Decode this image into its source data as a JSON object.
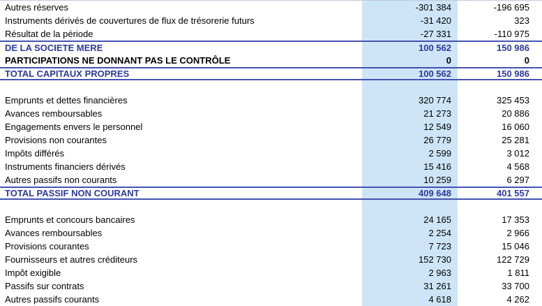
{
  "colors": {
    "highlight_column": "#cde5f6",
    "total_text": "#2b3a9d",
    "separator_line": "#4453b2"
  },
  "table": {
    "rows": [
      {
        "label": "Autres réserves",
        "v1": "-301 384",
        "v2": "-196 695",
        "style": "normal"
      },
      {
        "label": "Instruments dérivés de couvertures de flux de trésorerie futurs",
        "v1": "-31 420",
        "v2": "323",
        "style": "normal"
      },
      {
        "label": "Résultat de la période",
        "v1": "-27 331",
        "v2": "-110 975",
        "style": "normal"
      },
      {
        "label": "DE LA SOCIETE MERE",
        "v1": "100 562",
        "v2": "150 986",
        "style": "total-blue",
        "border_top": true
      },
      {
        "label": "PARTICIPATIONS NE DONNANT PAS LE CONTRÔLE",
        "v1": "0",
        "v2": "0",
        "style": "bold-black"
      },
      {
        "label": "TOTAL CAPITAUX PROPRES",
        "v1": "100 562",
        "v2": "150 986",
        "style": "total-blue",
        "border_top": true,
        "border_bottom": true
      },
      {
        "style": "spacer"
      },
      {
        "label": "Emprunts et dettes financières",
        "v1": "320 774",
        "v2": "325 453",
        "style": "normal"
      },
      {
        "label": "Avances remboursables",
        "v1": "21 273",
        "v2": "20 886",
        "style": "normal"
      },
      {
        "label": "Engagements envers le personnel",
        "v1": "12 549",
        "v2": "16 060",
        "style": "normal"
      },
      {
        "label": "Provisions non courantes",
        "v1": "26 779",
        "v2": "25 281",
        "style": "normal"
      },
      {
        "label": "Impôts différés",
        "v1": "2 599",
        "v2": "3 012",
        "style": "normal"
      },
      {
        "label": "Instruments financiers dérivés",
        "v1": "15 416",
        "v2": "4 568",
        "style": "normal"
      },
      {
        "label": "Autres passifs non courants",
        "v1": "10 259",
        "v2": "6 297",
        "style": "normal"
      },
      {
        "label": "TOTAL PASSIF NON COURANT",
        "v1": "409 648",
        "v2": "401 557",
        "style": "total-blue",
        "border_top": true,
        "border_bottom": true
      },
      {
        "style": "spacer"
      },
      {
        "label": "Emprunts et concours bancaires",
        "v1": "24 165",
        "v2": "17 353",
        "style": "normal"
      },
      {
        "label": "Avances remboursables",
        "v1": "2 254",
        "v2": "2 966",
        "style": "normal"
      },
      {
        "label": "Provisions courantes",
        "v1": "7 723",
        "v2": "15 046",
        "style": "normal"
      },
      {
        "label": "Fournisseurs et autres créditeurs",
        "v1": "152 730",
        "v2": "122 729",
        "style": "normal"
      },
      {
        "label": "Impôt exigible",
        "v1": "2 963",
        "v2": "1 811",
        "style": "normal"
      },
      {
        "label": "Passifs sur contrats",
        "v1": "31 261",
        "v2": "33 700",
        "style": "normal"
      },
      {
        "label": "Autres passifs courants",
        "v1": "4 618",
        "v2": "4 262",
        "style": "normal"
      }
    ]
  }
}
